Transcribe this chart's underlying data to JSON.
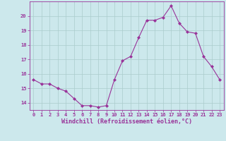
{
  "x": [
    0,
    1,
    2,
    3,
    4,
    5,
    6,
    7,
    8,
    9,
    10,
    11,
    12,
    13,
    14,
    15,
    16,
    17,
    18,
    19,
    20,
    21,
    22,
    23
  ],
  "y": [
    15.6,
    15.3,
    15.3,
    15.0,
    14.8,
    14.3,
    13.8,
    13.8,
    13.7,
    13.8,
    15.6,
    16.9,
    17.2,
    18.5,
    19.7,
    19.7,
    19.9,
    20.7,
    19.5,
    18.9,
    18.8,
    17.2,
    16.5,
    15.6
  ],
  "xlim": [
    -0.5,
    23.5
  ],
  "ylim": [
    13.5,
    21.0
  ],
  "yticks": [
    14,
    15,
    16,
    17,
    18,
    19,
    20
  ],
  "xticks": [
    0,
    1,
    2,
    3,
    4,
    5,
    6,
    7,
    8,
    9,
    10,
    11,
    12,
    13,
    14,
    15,
    16,
    17,
    18,
    19,
    20,
    21,
    22,
    23
  ],
  "xlabel": "Windchill (Refroidissement éolien,°C)",
  "line_color": "#993399",
  "marker": "D",
  "marker_size": 2.0,
  "bg_color": "#cce8ec",
  "grid_color": "#aacccc",
  "axis_color": "#993399",
  "tick_color": "#993399",
  "label_color": "#993399",
  "tick_fontsize": 5.0,
  "xlabel_fontsize": 6.0
}
